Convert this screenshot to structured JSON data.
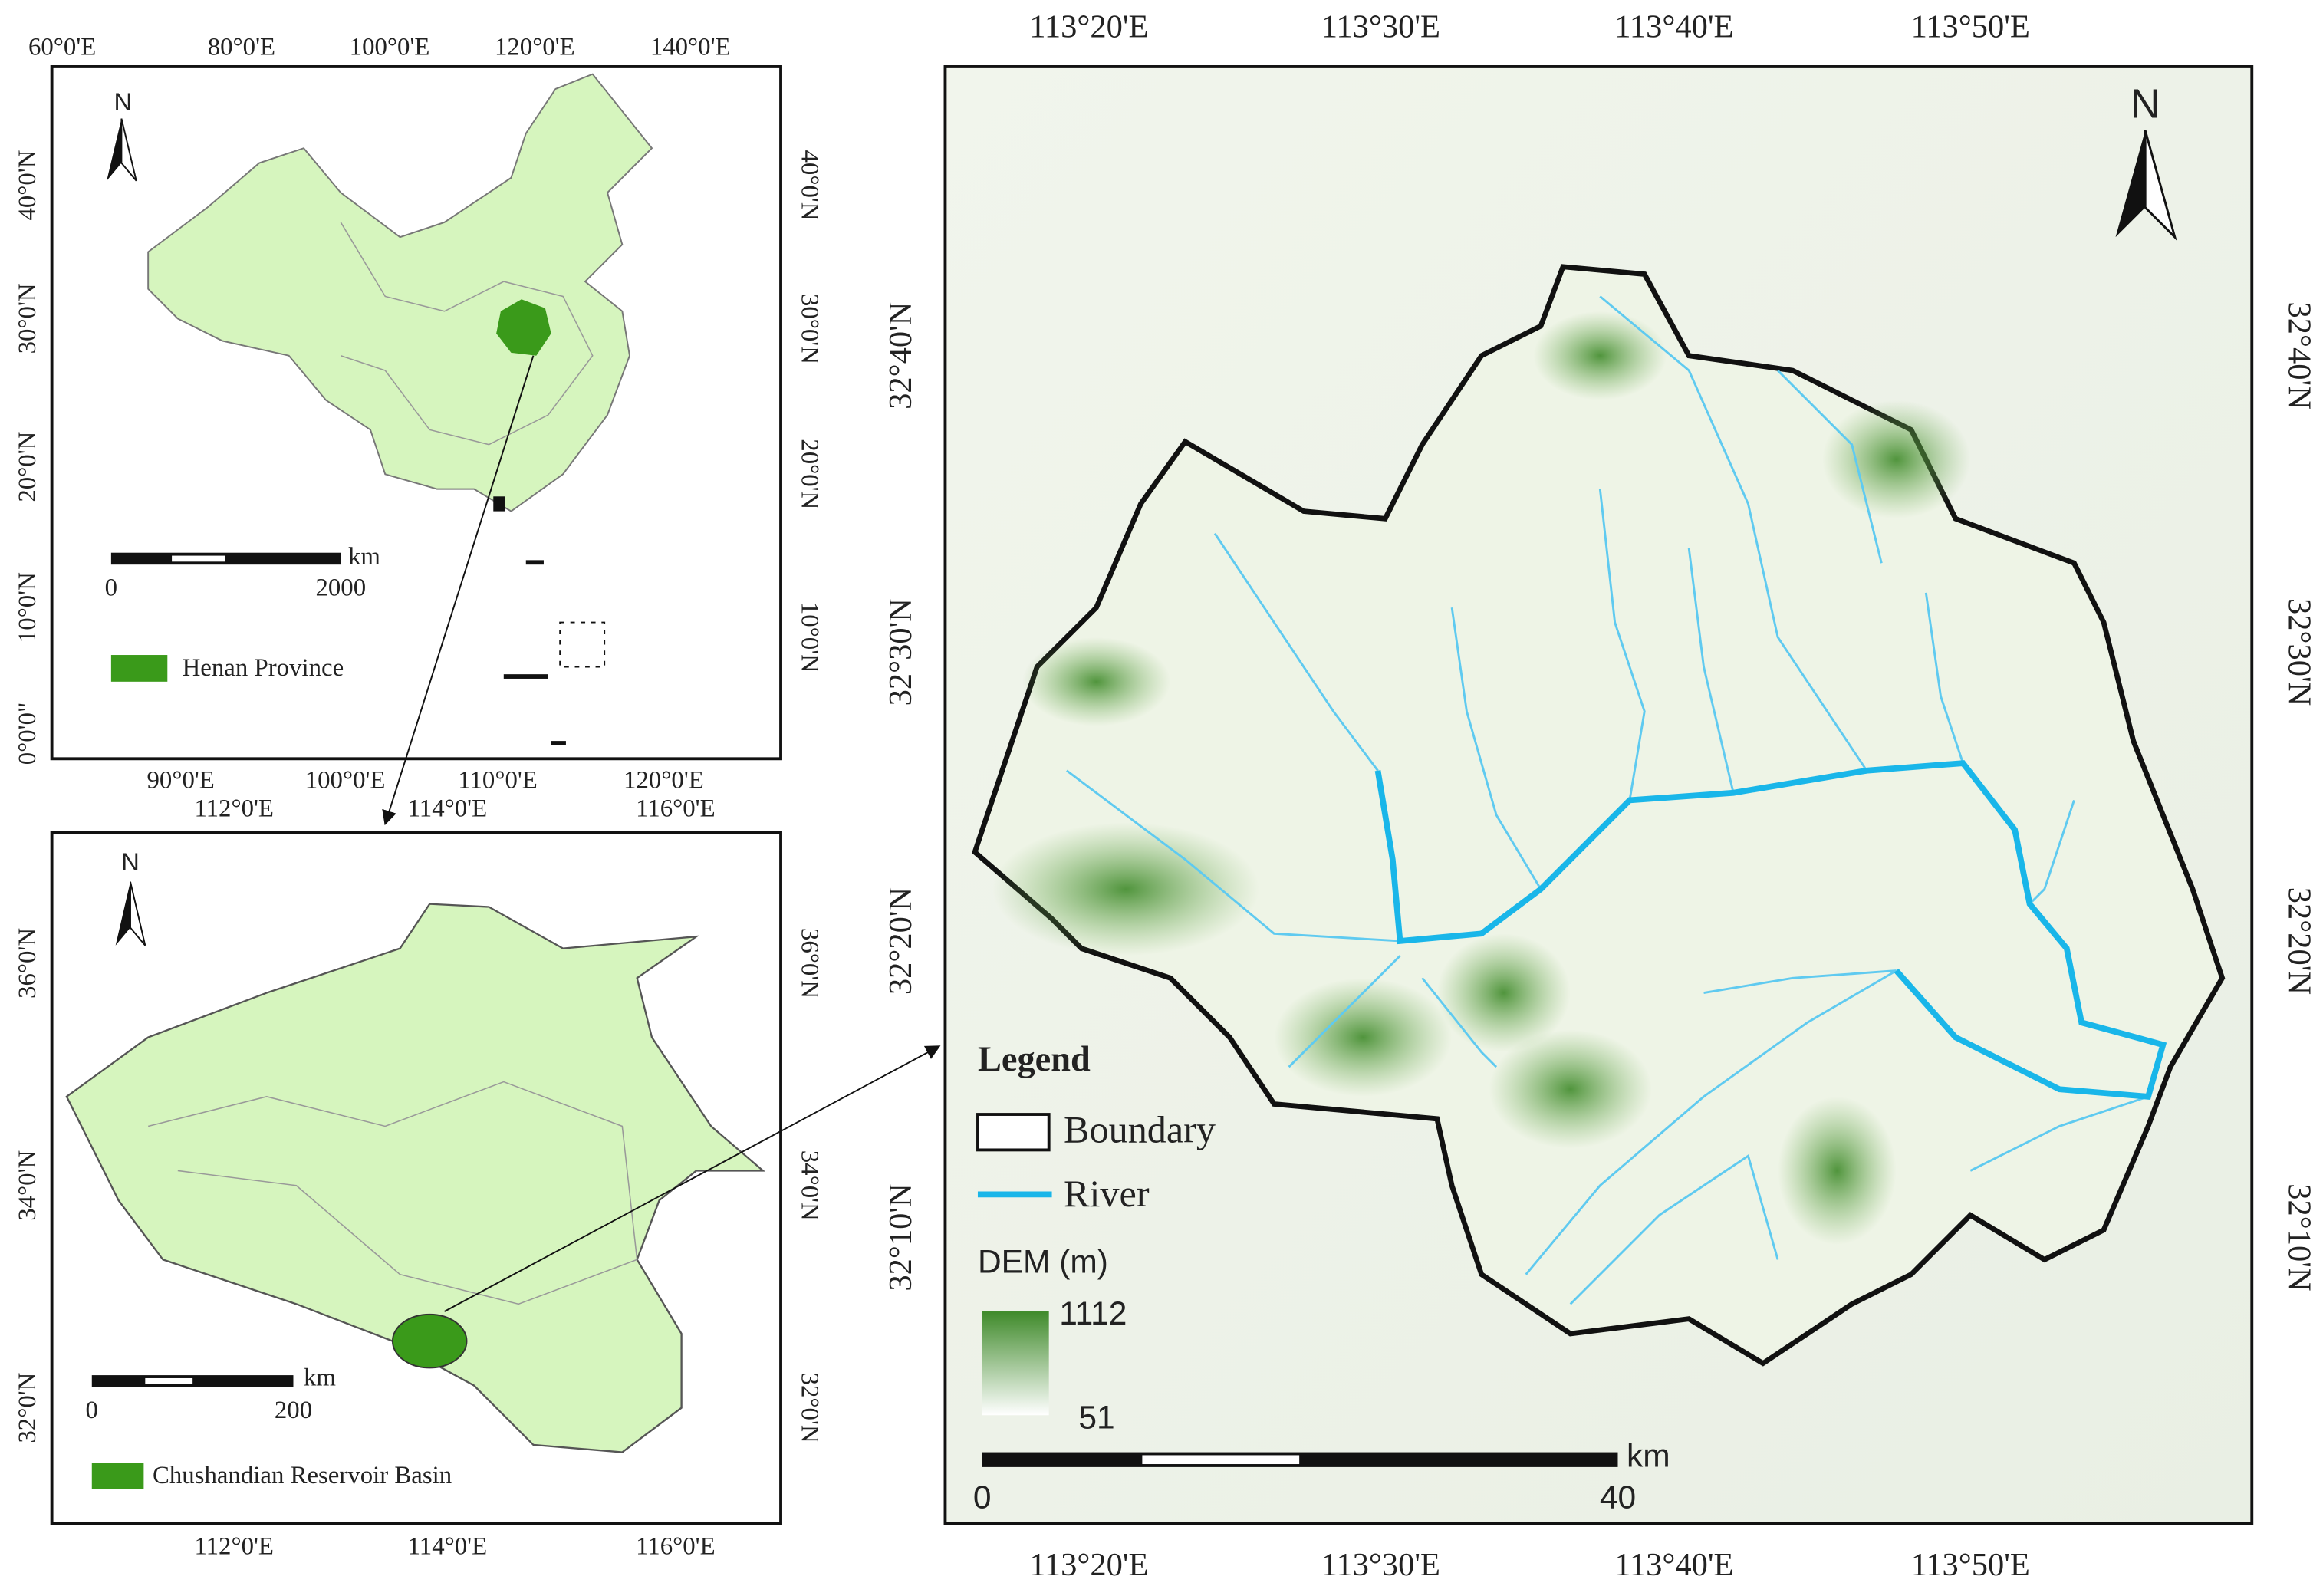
{
  "china_map": {
    "top_labels": [
      "60°0'E",
      "80°0'E",
      "100°0'E",
      "120°0'E",
      "140°0'E"
    ],
    "bottom_labels": [
      "90°0'E",
      "100°0'E",
      "110°0'E",
      "120°0'E"
    ],
    "left_labels": [
      "40°0'N",
      "30°0'N",
      "20°0'N",
      "10°0'N",
      "0°0'0\""
    ],
    "right_labels": [
      "40°0'N",
      "30°0'N",
      "20°0'N",
      "10°0'N"
    ],
    "north": "N",
    "scale_unit": "km",
    "scale_start": 0,
    "scale_end": 2000,
    "legend_label": "Henan Province"
  },
  "henan_map": {
    "top_labels": [
      "112°0'E",
      "114°0'E",
      "116°0'E"
    ],
    "bottom_labels": [
      "112°0'E",
      "114°0'E",
      "116°0'E"
    ],
    "left_labels": [
      "36°0'N",
      "34°0'N",
      "32°0'N"
    ],
    "right_labels": [
      "36°0'N",
      "34°0'N",
      "32°0'N"
    ],
    "north": "N",
    "scale_unit": "km",
    "scale_start": 0,
    "scale_end": 200,
    "legend_label": "Chushandian Reservoir Basin"
  },
  "basin_map": {
    "top_labels": [
      "113°20'E",
      "113°30'E",
      "113°40'E",
      "113°50'E"
    ],
    "bottom_labels": [
      "113°20'E",
      "113°30'E",
      "113°40'E",
      "113°50'E"
    ],
    "left_labels": [
      "32°40'N",
      "32°30'N",
      "32°20'N",
      "32°10'N"
    ],
    "right_labels": [
      "32°40'N",
      "32°30'N",
      "32°20'N",
      "32°10'N"
    ],
    "north": "N",
    "legend_title": "Legend",
    "legend_items": [
      "Boundary",
      "River"
    ],
    "dem_title": "DEM (m)",
    "dem_max": 1112,
    "dem_min": 51,
    "scale_unit": "km",
    "scale_start": 0,
    "scale_end": 40
  }
}
